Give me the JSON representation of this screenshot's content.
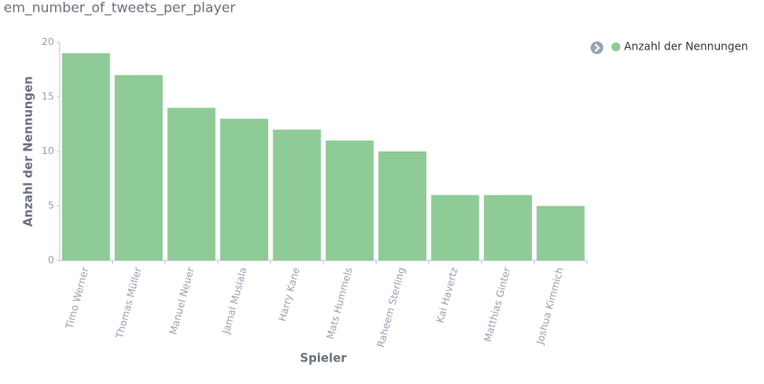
{
  "chart_data": {
    "type": "bar",
    "title": "em_number_of_tweets_per_player",
    "x_label": "Spieler",
    "y_label": "Anzahl der Nennungen",
    "categories": [
      "Timo Werner",
      "Thomas Müller",
      "Manuel Neuer",
      "Jamal Musiala",
      "Harry Kane",
      "Mats Hummels",
      "Raheem Sterling",
      "Kai Havertz",
      "Matthias Ginter",
      "Joshua Kimmich"
    ],
    "series": [
      {
        "name": "Anzahl der Nennungen",
        "color": "#8ecb97",
        "values": [
          19,
          17,
          14,
          13,
          12,
          11,
          10,
          6,
          6,
          5
        ]
      }
    ],
    "ylim": [
      0,
      20
    ],
    "yticks": [
      0,
      5,
      10,
      15,
      20
    ],
    "legend": "top-right"
  }
}
